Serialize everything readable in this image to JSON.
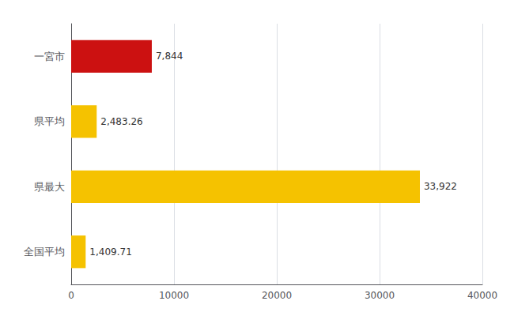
{
  "chart_data": {
    "type": "bar",
    "orientation": "horizontal",
    "categories": [
      "一宮市",
      "県平均",
      "県最大",
      "全国平均"
    ],
    "values": [
      7844,
      2483.26,
      33922,
      1409.71
    ],
    "value_labels": [
      "7,844",
      "2,483.26",
      "33,922",
      "1,409.71"
    ],
    "colors": [
      "#cc1111",
      "#f5c200",
      "#f5c200",
      "#f5c200"
    ],
    "xlim": [
      0,
      40000
    ],
    "xticks": [
      0,
      10000,
      20000,
      30000,
      40000
    ],
    "grid": true,
    "data_labels": true
  }
}
